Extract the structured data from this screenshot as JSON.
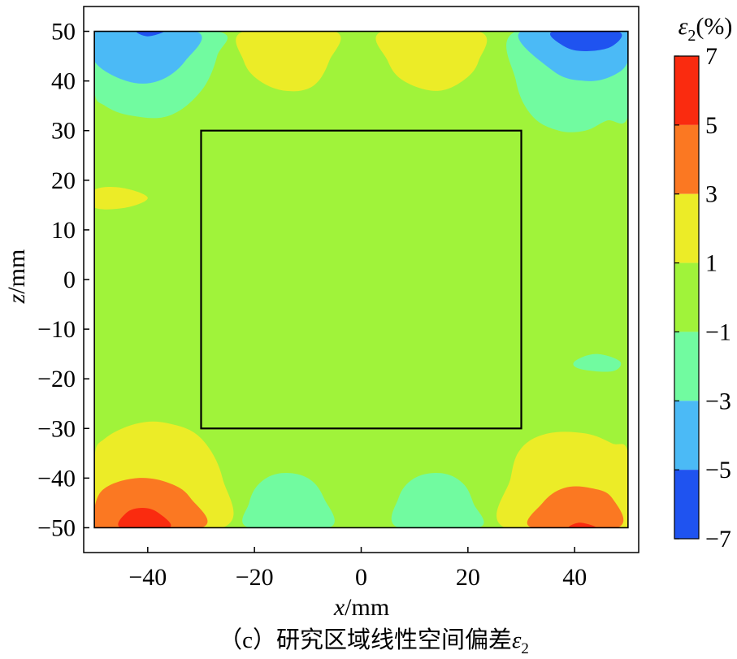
{
  "chart_data": {
    "type": "heatmap",
    "title": "",
    "caption": "（c）研究区域线性空间偏差",
    "caption_symbol": "ε",
    "caption_symbol_sub": "2",
    "xlabel_var": "x",
    "xlabel_unit": "/mm",
    "ylabel_var": "z",
    "ylabel_unit": "/mm",
    "xlim": [
      -52,
      52
    ],
    "ylim": [
      -55,
      55
    ],
    "x_ticks": [
      -40,
      -20,
      0,
      20,
      40
    ],
    "x_tick_labels": [
      "−40",
      "−20",
      "0",
      "20",
      "40"
    ],
    "y_ticks": [
      50,
      40,
      30,
      20,
      10,
      0,
      -10,
      -20,
      -30,
      -40,
      -50
    ],
    "y_tick_labels": [
      "50",
      "40",
      "30",
      "20",
      "10",
      "0",
      "−10",
      "−20",
      "−30",
      "−40",
      "−50"
    ],
    "domain": {
      "x": [
        -50,
        50
      ],
      "z": [
        -50,
        50
      ]
    },
    "inner_square": {
      "x": [
        -30,
        30
      ],
      "z": [
        -30,
        30
      ]
    },
    "colorbar": {
      "title_symbol": "ε",
      "title_sub": "2",
      "title_unit": "(%)",
      "levels": [
        7,
        5,
        3,
        1,
        -1,
        -3,
        -5,
        -7
      ],
      "level_labels": [
        "7",
        "5",
        "3",
        "1",
        "−1",
        "−3",
        "−5",
        "−7"
      ],
      "colors": [
        "#fa2b0f",
        "#fb7822",
        "#ecec27",
        "#a0f33a",
        "#71fba0",
        "#4bbaf6",
        "#1f53f0"
      ],
      "band_ranges": [
        [
          5,
          7
        ],
        [
          3,
          5
        ],
        [
          1,
          3
        ],
        [
          -1,
          1
        ],
        [
          -3,
          -1
        ],
        [
          -5,
          -3
        ],
        [
          -7,
          -5
        ]
      ]
    },
    "background_band": [
      -1,
      1
    ],
    "regions": [
      {
        "band": [
          -3,
          -1
        ],
        "points": [
          [
            -50,
            50
          ],
          [
            -27,
            50
          ],
          [
            -27,
            45
          ],
          [
            -30,
            38
          ],
          [
            -36,
            33
          ],
          [
            -43,
            33
          ],
          [
            -48,
            35
          ],
          [
            -50,
            38
          ]
        ]
      },
      {
        "band": [
          -5,
          -3
        ],
        "points": [
          [
            -50,
            50
          ],
          [
            -31,
            50
          ],
          [
            -33,
            44
          ],
          [
            -38,
            40
          ],
          [
            -44,
            40
          ],
          [
            -50,
            44
          ]
        ]
      },
      {
        "band": [
          -7,
          -5
        ],
        "points": [
          [
            -42,
            50
          ],
          [
            -37,
            50
          ],
          [
            -40,
            49
          ]
        ]
      },
      {
        "band": [
          1,
          3
        ],
        "points": [
          [
            -22,
            50
          ],
          [
            -5,
            50
          ],
          [
            -6,
            44
          ],
          [
            -9,
            39
          ],
          [
            -14,
            38
          ],
          [
            -19,
            40
          ],
          [
            -22,
            44
          ]
        ]
      },
      {
        "band": [
          1,
          3
        ],
        "points": [
          [
            4,
            50
          ],
          [
            22,
            50
          ],
          [
            22,
            44
          ],
          [
            19,
            40
          ],
          [
            14,
            38
          ],
          [
            8,
            40
          ],
          [
            5,
            44
          ]
        ]
      },
      {
        "band": [
          -3,
          -1
        ],
        "points": [
          [
            29,
            50
          ],
          [
            50,
            50
          ],
          [
            50,
            33
          ],
          [
            46,
            32
          ],
          [
            42,
            30
          ],
          [
            37,
            30
          ],
          [
            32,
            33
          ],
          [
            29,
            40
          ]
        ]
      },
      {
        "band": [
          -5,
          -3
        ],
        "points": [
          [
            30,
            50
          ],
          [
            50,
            50
          ],
          [
            50,
            44
          ],
          [
            47,
            41
          ],
          [
            42,
            40
          ],
          [
            36,
            42
          ]
        ]
      },
      {
        "band": [
          -7,
          -5
        ],
        "points": [
          [
            36,
            50
          ],
          [
            48,
            50
          ],
          [
            47,
            47
          ],
          [
            42,
            46
          ],
          [
            38,
            47
          ]
        ]
      },
      {
        "band": [
          1,
          3
        ],
        "points": [
          [
            -50,
            18
          ],
          [
            -45,
            18.5
          ],
          [
            -40,
            16.5
          ],
          [
            -44,
            14.5
          ],
          [
            -50,
            14.5
          ]
        ]
      },
      {
        "band": [
          -3,
          -1
        ],
        "points": [
          [
            40,
            -16.5
          ],
          [
            44,
            -15
          ],
          [
            48.5,
            -16.5
          ],
          [
            47,
            -18.5
          ],
          [
            41,
            -18
          ]
        ]
      },
      {
        "band": [
          1,
          3
        ],
        "points": [
          [
            -50,
            -50
          ],
          [
            -26,
            -50
          ],
          [
            -26,
            -40
          ],
          [
            -30,
            -32
          ],
          [
            -36,
            -29
          ],
          [
            -42,
            -29
          ],
          [
            -48,
            -32
          ],
          [
            -50,
            -36
          ]
        ]
      },
      {
        "band": [
          3,
          5
        ],
        "points": [
          [
            -50,
            -50
          ],
          [
            -30,
            -50
          ],
          [
            -32,
            -44
          ],
          [
            -36,
            -41
          ],
          [
            -42,
            -40
          ],
          [
            -48,
            -42
          ],
          [
            -50,
            -46
          ]
        ]
      },
      {
        "band": [
          5,
          7
        ],
        "points": [
          [
            -45,
            -50
          ],
          [
            -36,
            -50
          ],
          [
            -38,
            -47
          ],
          [
            -41,
            -46
          ],
          [
            -44,
            -47
          ]
        ]
      },
      {
        "band": [
          -3,
          -1
        ],
        "points": [
          [
            -21,
            -50
          ],
          [
            -6,
            -50
          ],
          [
            -7,
            -44
          ],
          [
            -10,
            -40
          ],
          [
            -15,
            -39
          ],
          [
            -19,
            -41
          ],
          [
            -21,
            -45
          ]
        ]
      },
      {
        "band": [
          -3,
          -1
        ],
        "points": [
          [
            7,
            -50
          ],
          [
            22,
            -50
          ],
          [
            21,
            -45
          ],
          [
            19,
            -41
          ],
          [
            15,
            -39
          ],
          [
            10,
            -40
          ],
          [
            7,
            -44
          ]
        ]
      },
      {
        "band": [
          1,
          3
        ],
        "points": [
          [
            27,
            -50
          ],
          [
            50,
            -50
          ],
          [
            50,
            -35
          ],
          [
            47,
            -33
          ],
          [
            42,
            -31
          ],
          [
            35,
            -31
          ],
          [
            30,
            -34
          ],
          [
            28,
            -40
          ]
        ]
      },
      {
        "band": [
          3,
          5
        ],
        "points": [
          [
            32,
            -50
          ],
          [
            48,
            -50
          ],
          [
            47,
            -44
          ],
          [
            43,
            -42
          ],
          [
            38,
            -42
          ],
          [
            34,
            -45
          ]
        ]
      },
      {
        "band": [
          5,
          7
        ],
        "points": [
          [
            39,
            -50
          ],
          [
            44,
            -50
          ],
          [
            41,
            -49
          ]
        ]
      }
    ]
  }
}
